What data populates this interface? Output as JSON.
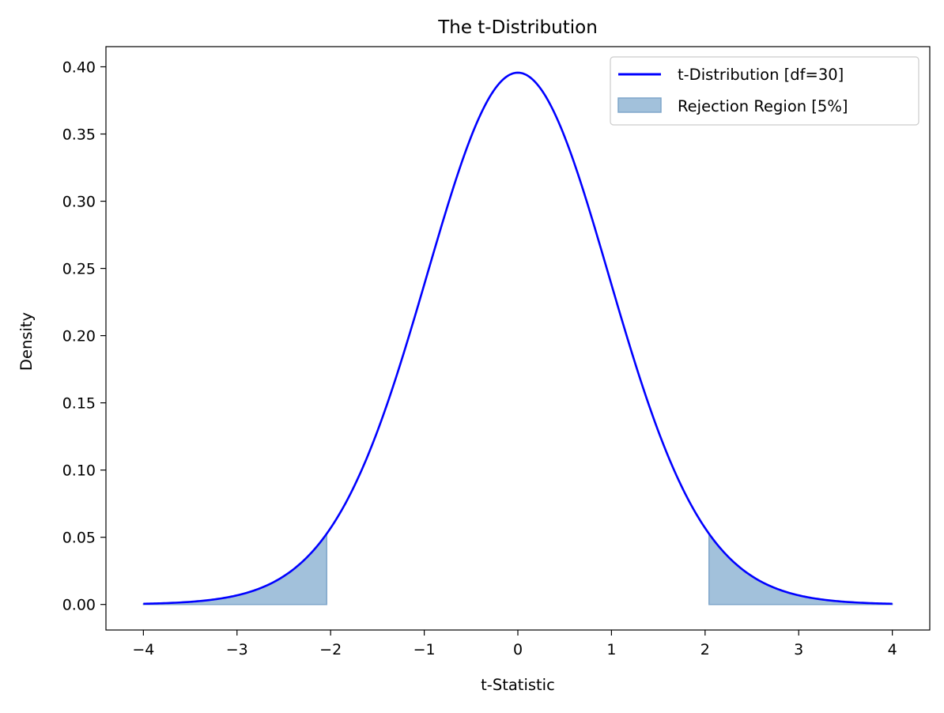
{
  "chart_data": {
    "type": "line",
    "title": "The t-Distribution",
    "xlabel": "t-Statistic",
    "ylabel": "Density",
    "xlim": [
      -4.4,
      4.4
    ],
    "ylim": [
      -0.019,
      0.415
    ],
    "x_ticks": [
      -4,
      -3,
      -2,
      -1,
      0,
      1,
      2,
      3,
      4
    ],
    "x_tick_labels": [
      "−4",
      "−3",
      "−2",
      "−1",
      "0",
      "1",
      "2",
      "3",
      "4"
    ],
    "y_ticks": [
      0.0,
      0.05,
      0.1,
      0.15,
      0.2,
      0.25,
      0.3,
      0.35,
      0.4
    ],
    "y_tick_labels": [
      "0.00",
      "0.05",
      "0.10",
      "0.15",
      "0.20",
      "0.25",
      "0.30",
      "0.35",
      "0.40"
    ],
    "grid": false,
    "legend_position": "top-right",
    "series": [
      {
        "name": "t-Distribution [df=30]",
        "color": "#0000ff",
        "x": [
          -4.0,
          -3.75,
          -3.5,
          -3.25,
          -3.0,
          -2.75,
          -2.5,
          -2.25,
          -2.042,
          -2.0,
          -1.75,
          -1.5,
          -1.25,
          -1.0,
          -0.75,
          -0.5,
          -0.25,
          0.0,
          0.25,
          0.5,
          0.75,
          1.0,
          1.25,
          1.5,
          1.75,
          2.0,
          2.042,
          2.25,
          2.5,
          2.75,
          3.0,
          3.25,
          3.5,
          3.75,
          4.0
        ],
        "y": [
          0.0007,
          0.0013,
          0.0024,
          0.0043,
          0.0073,
          0.0121,
          0.0195,
          0.0305,
          0.0493,
          0.0531,
          0.0852,
          0.1277,
          0.1781,
          0.2357,
          0.2944,
          0.3457,
          0.3804,
          0.395,
          0.3804,
          0.3457,
          0.2944,
          0.2357,
          0.1781,
          0.1277,
          0.0852,
          0.0531,
          0.0493,
          0.0305,
          0.0195,
          0.0121,
          0.0073,
          0.0043,
          0.0024,
          0.0013,
          0.0007
        ]
      }
    ],
    "shaded_regions": [
      {
        "name": "Rejection Region [5%]",
        "color": "#a2c1db",
        "edge_color": "#7fa6ca",
        "x_from": -4.0,
        "x_to": -2.042
      },
      {
        "name": "Rejection Region [5%]",
        "color": "#a2c1db",
        "edge_color": "#7fa6ca",
        "x_from": 2.042,
        "x_to": 4.0
      }
    ],
    "legend": [
      {
        "label": "t-Distribution [df=30]",
        "kind": "line",
        "color": "#0000ff"
      },
      {
        "label": "Rejection Region [5%]",
        "kind": "patch",
        "color": "#a2c1db"
      }
    ]
  }
}
